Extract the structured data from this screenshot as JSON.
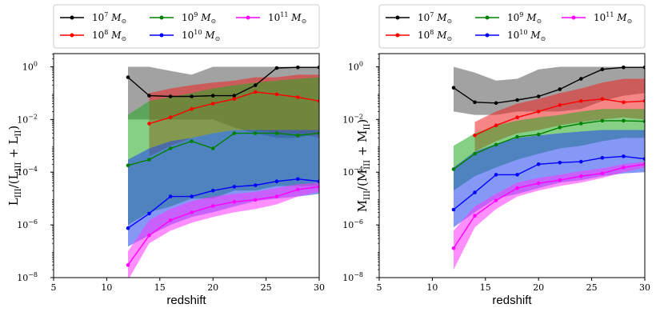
{
  "chart_data": [
    {
      "type": "line",
      "panel": "left",
      "xlabel": "redshift",
      "ylabel_main": "L",
      "ylabel_sub_num": "III",
      "ylabel_den_open": "/(L",
      "ylabel_den_sub1": "III",
      "ylabel_plus": " + L",
      "ylabel_den_sub2": "II",
      "ylabel_close": ")",
      "xlim": [
        5,
        30
      ],
      "ylim_log10": [
        -8,
        0.5
      ],
      "xticks": [
        5,
        10,
        15,
        20,
        25,
        30
      ],
      "yticks": [
        {
          "exp": 0,
          "label": "10",
          "sup": "0"
        },
        {
          "exp": -2,
          "label": "10",
          "sup": "−2"
        },
        {
          "exp": -4,
          "label": "10",
          "sup": "−4"
        },
        {
          "exp": -6,
          "label": "10",
          "sup": "−6"
        },
        {
          "exp": -8,
          "label": "10",
          "sup": "−8"
        }
      ],
      "legend_position": "top (above axes)",
      "series": [
        {
          "name": "10^7 M☉",
          "base": "10",
          "exp": "7",
          "unit": "M",
          "color": "#000000",
          "band_color": "#555555",
          "x": [
            12,
            14,
            16,
            18,
            20,
            22,
            24,
            26,
            28,
            30
          ],
          "y": [
            0.4,
            0.08,
            0.075,
            0.075,
            0.08,
            0.08,
            0.2,
            0.9,
            0.95,
            0.95
          ],
          "upper": [
            1.0,
            1.0,
            0.7,
            0.5,
            1.0,
            1.0,
            1.0,
            1.0,
            1.0,
            1.0
          ],
          "lower": [
            0.01,
            0.01,
            0.01,
            0.01,
            0.01,
            0.005,
            0.003,
            0.002,
            0.002,
            0.003
          ]
        },
        {
          "name": "10^8 M☉",
          "base": "10",
          "exp": "8",
          "unit": "M",
          "color": "#ff0000",
          "band_color": "#ee2222",
          "x": [
            14,
            16,
            18,
            20,
            22,
            24,
            26,
            28,
            30
          ],
          "y": [
            0.007,
            0.012,
            0.025,
            0.04,
            0.06,
            0.11,
            0.09,
            0.07,
            0.05
          ],
          "upper": [
            0.1,
            0.15,
            0.2,
            0.25,
            0.3,
            0.4,
            0.4,
            0.5,
            0.5
          ],
          "lower": [
            0.0004,
            0.001,
            0.002,
            0.003,
            0.004,
            0.004,
            0.003,
            0.003,
            0.002
          ]
        },
        {
          "name": "10^9 M☉",
          "base": "10",
          "exp": "9",
          "unit": "M",
          "color": "#008000",
          "band_color": "#22aa22",
          "x": [
            12,
            14,
            16,
            18,
            20,
            22,
            24,
            26,
            28,
            30
          ],
          "y": [
            0.00018,
            0.0003,
            0.0008,
            0.0015,
            0.0008,
            0.003,
            0.003,
            0.003,
            0.0025,
            0.003
          ],
          "upper": [
            0.015,
            0.05,
            0.07,
            0.1,
            0.15,
            0.2,
            0.25,
            0.3,
            0.35,
            0.4
          ],
          "lower": [
            1e-06,
            3e-06,
            5e-06,
            1e-05,
            1e-05,
            2e-05,
            2e-05,
            3e-05,
            3e-05,
            3e-05
          ]
        },
        {
          "name": "10^10 M☉",
          "base": "10",
          "exp": "10",
          "unit": "M",
          "color": "#0000ff",
          "band_color": "#2244ee",
          "x": [
            12,
            14,
            16,
            18,
            20,
            22,
            24,
            26,
            28,
            30
          ],
          "y": [
            7.5e-07,
            2.7e-06,
            1.2e-05,
            1.2e-05,
            2e-05,
            2.8e-05,
            3.2e-05,
            4.5e-05,
            5.5e-05,
            4.5e-05
          ],
          "upper": [
            0.0003,
            0.0008,
            0.0015,
            0.002,
            0.003,
            0.004,
            0.004,
            0.004,
            0.004,
            0.004
          ],
          "lower": [
            1.5e-07,
            4e-07,
            1e-06,
            2e-06,
            3e-06,
            5e-06,
            8e-06,
            1e-05,
            1.2e-05,
            1.5e-05
          ]
        },
        {
          "name": "10^11 M☉",
          "base": "10",
          "exp": "11",
          "unit": "M",
          "color": "#ff00ff",
          "band_color": "#ff33ff",
          "x": [
            12,
            14,
            16,
            18,
            20,
            22,
            24,
            26,
            28,
            30
          ],
          "y": [
            3e-08,
            4e-07,
            1.5e-06,
            3e-06,
            5.2e-06,
            7.5e-06,
            9e-06,
            1.2e-05,
            2.2e-05,
            2.8e-05
          ],
          "upper": [
            1e-07,
            1.5e-06,
            4e-06,
            8e-06,
            1.2e-05,
            1.5e-05,
            1.8e-05,
            2.5e-05,
            3.5e-05,
            4e-05
          ],
          "lower": [
            8e-09,
            2e-07,
            6e-07,
            1.2e-06,
            2e-06,
            3e-06,
            4e-06,
            6e-06,
            1.2e-05,
            1.8e-05
          ]
        }
      ]
    },
    {
      "type": "line",
      "panel": "right",
      "xlabel": "redshift",
      "ylabel_main": "M",
      "ylabel_sub_num": "III",
      "ylabel_den_open": "/(M",
      "ylabel_den_sub1": "III",
      "ylabel_plus": " + M",
      "ylabel_den_sub2": "II",
      "ylabel_close": ")",
      "xlim": [
        5,
        30
      ],
      "ylim_log10": [
        -8,
        0.5
      ],
      "xticks": [
        5,
        10,
        15,
        20,
        25,
        30
      ],
      "yticks": [
        {
          "exp": 0,
          "label": "10",
          "sup": "0"
        },
        {
          "exp": -2,
          "label": "10",
          "sup": "−2"
        },
        {
          "exp": -4,
          "label": "10",
          "sup": "−4"
        },
        {
          "exp": -6,
          "label": "10",
          "sup": "−6"
        },
        {
          "exp": -8,
          "label": "10",
          "sup": "−8"
        }
      ],
      "legend_position": "top (above axes)",
      "series": [
        {
          "name": "10^7 M☉",
          "base": "10",
          "exp": "7",
          "unit": "M",
          "color": "#000000",
          "band_color": "#555555",
          "x": [
            12,
            14,
            16,
            18,
            20,
            22,
            24,
            26,
            28,
            30
          ],
          "y": [
            0.16,
            0.045,
            0.042,
            0.055,
            0.075,
            0.14,
            0.35,
            0.8,
            0.95,
            0.95
          ],
          "upper": [
            1.0,
            0.6,
            0.3,
            0.35,
            0.8,
            1.0,
            1.0,
            1.0,
            1.0,
            1.0
          ],
          "lower": [
            0.02,
            0.015,
            0.015,
            0.02,
            0.02,
            0.02,
            0.025,
            0.05,
            0.08,
            0.1
          ]
        },
        {
          "name": "10^8 M☉",
          "base": "10",
          "exp": "8",
          "unit": "M",
          "color": "#ff0000",
          "band_color": "#ee2222",
          "x": [
            14,
            16,
            18,
            20,
            22,
            24,
            26,
            28,
            30
          ],
          "y": [
            0.0025,
            0.006,
            0.012,
            0.02,
            0.035,
            0.05,
            0.06,
            0.045,
            0.05
          ],
          "upper": [
            0.008,
            0.02,
            0.04,
            0.06,
            0.1,
            0.15,
            0.25,
            0.35,
            0.35
          ],
          "lower": [
            0.0006,
            0.0015,
            0.003,
            0.004,
            0.006,
            0.008,
            0.01,
            0.012,
            0.01
          ]
        },
        {
          "name": "10^9 M☉",
          "base": "10",
          "exp": "9",
          "unit": "M",
          "color": "#008000",
          "band_color": "#22aa22",
          "x": [
            12,
            14,
            16,
            18,
            20,
            22,
            24,
            26,
            28,
            30
          ],
          "y": [
            0.00013,
            0.0005,
            0.0011,
            0.0022,
            0.0027,
            0.005,
            0.007,
            0.009,
            0.009,
            0.0085
          ],
          "upper": [
            0.001,
            0.003,
            0.006,
            0.009,
            0.012,
            0.015,
            0.02,
            0.025,
            0.025,
            0.025
          ],
          "lower": [
            2e-05,
            7e-05,
            0.00015,
            0.0003,
            0.0005,
            0.0008,
            0.001,
            0.0015,
            0.002,
            0.002
          ]
        },
        {
          "name": "10^10 M☉",
          "base": "10",
          "exp": "10",
          "unit": "M",
          "color": "#0000ff",
          "band_color": "#2244ee",
          "x": [
            12,
            14,
            16,
            18,
            20,
            22,
            24,
            26,
            28,
            30
          ],
          "y": [
            3.8e-06,
            1.7e-05,
            8e-05,
            8e-05,
            0.0002,
            0.00023,
            0.00025,
            0.00035,
            0.0004,
            0.00032
          ],
          "upper": [
            0.00015,
            0.0006,
            0.0012,
            0.002,
            0.0025,
            0.003,
            0.0035,
            0.004,
            0.004,
            0.004
          ],
          "lower": [
            8e-07,
            3e-06,
            1e-05,
            1.5e-05,
            2.5e-05,
            4e-05,
            5e-05,
            7e-05,
            9e-05,
            0.0001
          ]
        },
        {
          "name": "10^11 M☉",
          "base": "10",
          "exp": "11",
          "unit": "M",
          "color": "#ff00ff",
          "band_color": "#ff33ff",
          "x": [
            12,
            14,
            16,
            18,
            20,
            22,
            24,
            26,
            28,
            30
          ],
          "y": [
            1.3e-07,
            2.2e-06,
            8.5e-06,
            2.5e-05,
            3.8e-05,
            5e-05,
            7e-05,
            9e-05,
            0.00015,
            0.0002
          ],
          "upper": [
            6e-07,
            5e-06,
            1.5e-05,
            4e-05,
            6e-05,
            8e-05,
            0.00011,
            0.00014,
            0.0002,
            0.00025
          ],
          "lower": [
            2e-08,
            8e-07,
            4e-06,
            1.2e-05,
            2e-05,
            3e-05,
            4e-05,
            6e-05,
            0.0001,
            0.00015
          ]
        }
      ]
    }
  ]
}
